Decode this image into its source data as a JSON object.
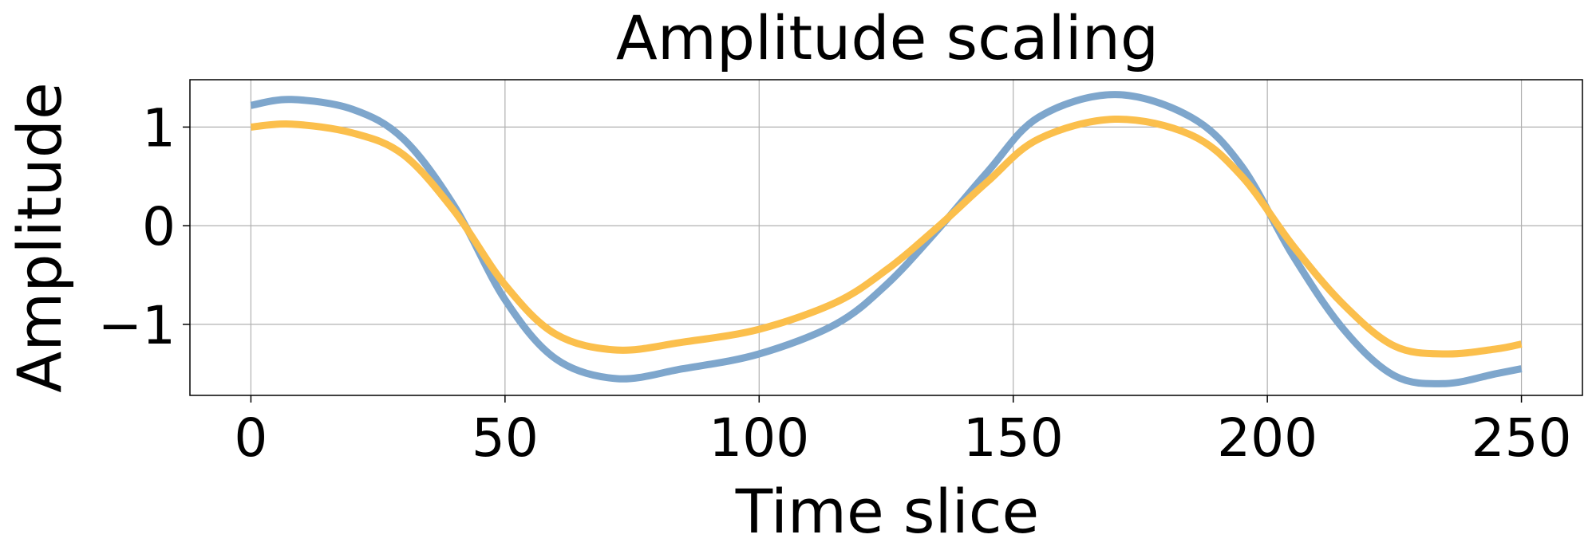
{
  "chart_data": {
    "type": "line",
    "title": "Amplitude scaling",
    "xlabel": "Time slice",
    "ylabel": "Amplitude",
    "xlim": [
      -12,
      262
    ],
    "ylim": [
      -1.72,
      1.48
    ],
    "xticks": [
      0,
      50,
      100,
      150,
      200,
      250
    ],
    "xtick_labels": [
      "0",
      "50",
      "100",
      "150",
      "200",
      "250"
    ],
    "yticks": [
      1,
      0,
      -1
    ],
    "ytick_labels": [
      "1",
      "0",
      "−1"
    ],
    "grid": true,
    "legend": "none",
    "series": [
      {
        "color": "#7ea6cc",
        "x": [
          0,
          8,
          20,
          30,
          40,
          50,
          60,
          72,
          85,
          100,
          115,
          125,
          135,
          145,
          155,
          170,
          185,
          195,
          205,
          215,
          225,
          235,
          245,
          250
        ],
        "y": [
          1.22,
          1.28,
          1.18,
          0.88,
          0.2,
          -0.75,
          -1.35,
          -1.55,
          -1.45,
          -1.3,
          -1.0,
          -0.6,
          -0.05,
          0.55,
          1.1,
          1.33,
          1.1,
          0.6,
          -0.3,
          -1.05,
          -1.52,
          -1.6,
          -1.5,
          -1.45
        ]
      },
      {
        "color": "#fbbf4c",
        "x": [
          0,
          8,
          20,
          30,
          40,
          50,
          60,
          72,
          85,
          100,
          115,
          125,
          135,
          145,
          155,
          170,
          185,
          195,
          205,
          215,
          225,
          235,
          245,
          250
        ],
        "y": [
          1.0,
          1.03,
          0.94,
          0.72,
          0.15,
          -0.6,
          -1.1,
          -1.26,
          -1.18,
          -1.05,
          -0.78,
          -0.45,
          -0.02,
          0.45,
          0.88,
          1.08,
          0.92,
          0.5,
          -0.2,
          -0.8,
          -1.22,
          -1.3,
          -1.25,
          -1.2
        ]
      }
    ]
  }
}
